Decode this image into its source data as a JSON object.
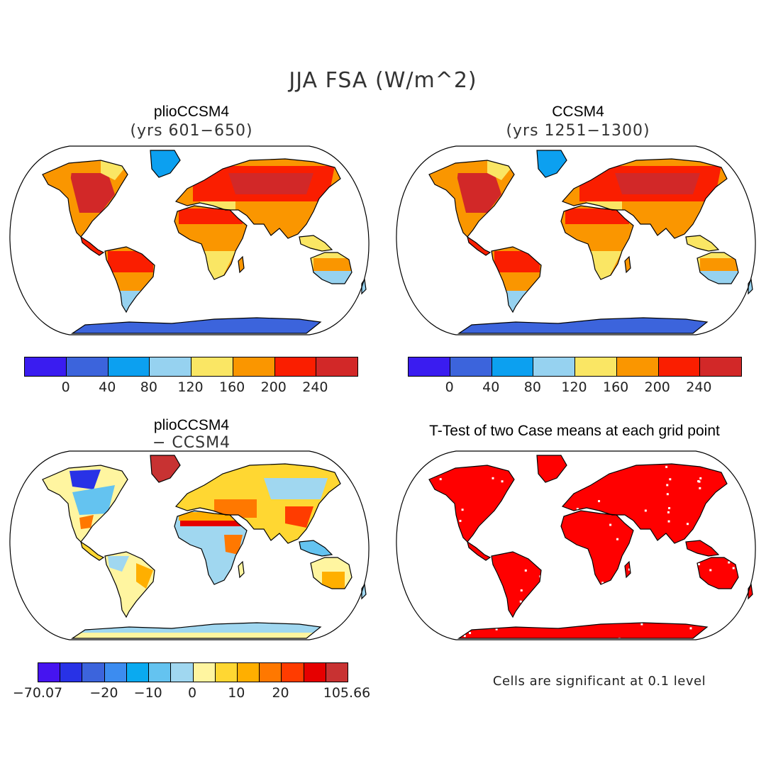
{
  "title": "JJA FSA (W/m^2)",
  "panels": {
    "top_left": {
      "title": "plioCCSM4",
      "subtitle": "(yrs 601−650)"
    },
    "top_right": {
      "title": "CCSM4",
      "subtitle": "(yrs 1251−1300)"
    },
    "bottom_left": {
      "title": "plioCCSM4",
      "subtitle": "− CCSM4"
    },
    "bottom_right": {
      "title": "T-Test of two Case means at each grid point"
    }
  },
  "colorbar_main": {
    "colors": [
      "#3a1cf0",
      "#3c64dc",
      "#0ca0f0",
      "#96d2f0",
      "#fae664",
      "#fa9600",
      "#fa1e00",
      "#d22828"
    ],
    "ticks": [
      "0",
      "40",
      "80",
      "120",
      "160",
      "200",
      "240"
    ]
  },
  "colorbar_diff": {
    "colors": [
      "#4614f0",
      "#2832e6",
      "#3c64dc",
      "#3c8cf0",
      "#0aaaf0",
      "#64c3f0",
      "#a0d7f0",
      "#fff5a0",
      "#ffd732",
      "#ffaf00",
      "#ff7800",
      "#ff3c00",
      "#e60000",
      "#c83232"
    ],
    "ticks": [
      "−70.07",
      "−20",
      "−10",
      "0",
      "10",
      "20",
      "105.66"
    ]
  },
  "note": "Cells are significant at 0.1 level"
}
